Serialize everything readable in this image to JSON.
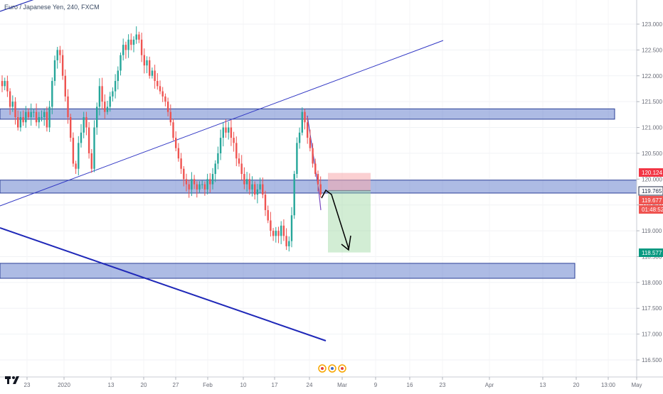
{
  "header": {
    "title": "Euro / Japanese Yen, 240, FXCM"
  },
  "chart_data": {
    "type": "candlestick",
    "y_ticks": [
      "123.000",
      "122.500",
      "122.000",
      "121.500",
      "121.000",
      "120.500",
      "120.000",
      "119.500",
      "119.000",
      "118.500",
      "118.000",
      "117.500",
      "117.000",
      "116.500"
    ],
    "ylim": [
      116.3,
      123.15
    ],
    "x_ticks": [
      "23",
      "2020",
      "13",
      "20",
      "27",
      "Feb",
      "10",
      "17",
      "24",
      "Mar",
      "9",
      "16",
      "23",
      "Apr",
      "13",
      "20",
      "13:00",
      "May"
    ],
    "price_labels": [
      {
        "name": "stop-loss",
        "value": "120.124",
        "color": "#f23645"
      },
      {
        "name": "bid",
        "value": "119.765",
        "color": "#ffffff"
      },
      {
        "name": "ask",
        "value": "119.677",
        "color": "#ef5350"
      },
      {
        "name": "countdown",
        "value": "01:48:52",
        "color": "#ef5350"
      },
      {
        "name": "take-profit",
        "value": "118.577",
        "color": "#089981"
      }
    ],
    "zones": [
      {
        "name": "resistance-zone",
        "from": 121.16,
        "to": 121.36
      },
      {
        "name": "current-zone",
        "from": 119.73,
        "to": 119.98
      },
      {
        "name": "support-zone",
        "from": 118.08,
        "to": 118.37
      }
    ],
    "closes": [
      121.8,
      121.9,
      121.7,
      121.4,
      121.5,
      121.2,
      121.0,
      121.2,
      121.1,
      121.3,
      121.2,
      121.3,
      121.3,
      121.1,
      121.2,
      121.2,
      121.3,
      121.0,
      121.4,
      121.9,
      122.3,
      122.5,
      122.4,
      122.0,
      121.6,
      121.2,
      120.8,
      120.3,
      120.2,
      120.7,
      120.9,
      121.2,
      121.0,
      120.5,
      120.2,
      121.0,
      121.4,
      121.8,
      121.5,
      121.3,
      121.4,
      121.6,
      121.7,
      121.9,
      122.1,
      122.4,
      122.6,
      122.5,
      122.7,
      122.6,
      122.7,
      122.8,
      122.7,
      122.4,
      122.2,
      122.3,
      122.0,
      122.1,
      121.9,
      121.8,
      121.7,
      121.6,
      121.5,
      121.3,
      121.1,
      120.8,
      120.6,
      120.4,
      120.2,
      120.0,
      119.9,
      119.8,
      120.0,
      119.9,
      119.8,
      119.9,
      119.9,
      119.8,
      120.0,
      119.9,
      120.1,
      120.3,
      120.5,
      120.8,
      121.0,
      120.9,
      121.0,
      120.8,
      120.7,
      120.4,
      120.3,
      120.1,
      119.9,
      120.0,
      119.8,
      119.9,
      119.7,
      119.8,
      119.9,
      119.7,
      119.4,
      119.2,
      119.0,
      118.9,
      119.0,
      118.9,
      119.1,
      118.9,
      118.7,
      118.8,
      119.3,
      120.1,
      120.7,
      120.9,
      121.3,
      121.1,
      120.8,
      120.6,
      120.3,
      120.1,
      119.9,
      119.7
    ],
    "annotations": {
      "trendlines": [
        "upper-ascending-line",
        "lower-ascending-line",
        "descending-line"
      ],
      "position": {
        "type": "short",
        "entry": 119.78,
        "stop": 120.12,
        "target": 118.58
      }
    }
  }
}
